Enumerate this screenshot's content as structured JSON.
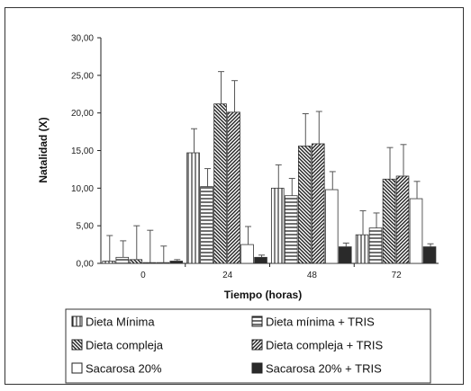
{
  "chart_data": {
    "type": "bar",
    "xlabel": "Tiempo (horas)",
    "ylabel": "Natalidad (X)",
    "categories": [
      "0",
      "24",
      "48",
      "72"
    ],
    "ylim": [
      0,
      30
    ],
    "yticks": [
      "0,00",
      "5,00",
      "10,00",
      "15,00",
      "20,00",
      "25,00",
      "30,00"
    ],
    "grid": false,
    "legend_position": "bottom",
    "error_bars": true,
    "series": [
      {
        "name": "Dieta Mínima",
        "pattern": "vlines",
        "values": [
          0.3,
          14.7,
          10.0,
          3.8
        ],
        "errors": [
          3.4,
          3.2,
          3.1,
          3.2
        ]
      },
      {
        "name": "Dieta mínima + TRIS",
        "pattern": "hlines",
        "values": [
          0.8,
          10.2,
          9.0,
          4.7
        ],
        "errors": [
          2.2,
          2.4,
          2.3,
          2.0
        ]
      },
      {
        "name": "Dieta compleja",
        "pattern": "diag-back",
        "values": [
          0.5,
          21.2,
          15.6,
          11.2
        ],
        "errors": [
          4.5,
          4.3,
          4.3,
          4.2
        ]
      },
      {
        "name": "Dieta compleja + TRIS",
        "pattern": "diag-fwd",
        "values": [
          0.1,
          20.1,
          15.9,
          11.6
        ],
        "errors": [
          4.3,
          4.2,
          4.3,
          4.2
        ]
      },
      {
        "name": "Sacarosa 20%",
        "pattern": "white",
        "values": [
          0.1,
          2.5,
          9.8,
          8.6
        ],
        "errors": [
          2.2,
          2.4,
          2.4,
          2.3
        ]
      },
      {
        "name": "Sacarosa 20% + TRIS",
        "pattern": "solid",
        "values": [
          0.3,
          0.8,
          2.2,
          2.2
        ],
        "errors": [
          0.2,
          0.3,
          0.5,
          0.4
        ]
      }
    ]
  }
}
